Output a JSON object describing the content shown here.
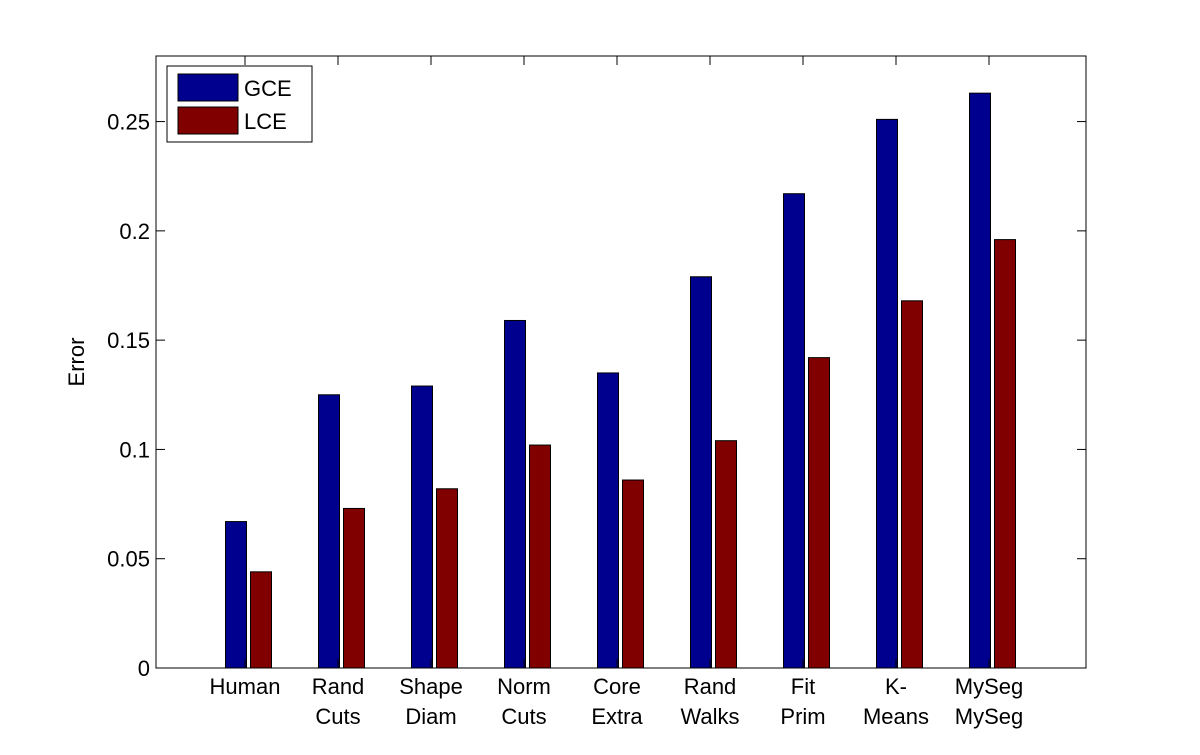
{
  "chart_data": {
    "type": "bar",
    "title": "",
    "xlabel": "",
    "ylabel": "Error",
    "ylim": [
      0,
      0.28
    ],
    "yticks": [
      0,
      0.05,
      0.1,
      0.15,
      0.2,
      0.25
    ],
    "ytick_labels": [
      "0",
      "0.05",
      "0.1",
      "0.15",
      "0.2",
      "0.25"
    ],
    "categories": [
      [
        "Human"
      ],
      [
        "Rand",
        "Cuts"
      ],
      [
        "Shape",
        "Diam"
      ],
      [
        "Norm",
        "Cuts"
      ],
      [
        "Core",
        "Extra"
      ],
      [
        "Rand",
        "Walks"
      ],
      [
        "Fit",
        "Prim"
      ],
      [
        "K-",
        "Means"
      ],
      [
        "MySeg",
        "MySeg"
      ]
    ],
    "series": [
      {
        "name": "GCE",
        "color": "#00008f",
        "values": [
          0.067,
          0.125,
          0.129,
          0.159,
          0.135,
          0.179,
          0.217,
          0.251,
          0.263
        ]
      },
      {
        "name": "LCE",
        "color": "#800000",
        "values": [
          0.044,
          0.073,
          0.082,
          0.102,
          0.086,
          0.104,
          0.142,
          0.168,
          0.196
        ]
      }
    ],
    "grid": false,
    "legend_position": "top-left"
  }
}
